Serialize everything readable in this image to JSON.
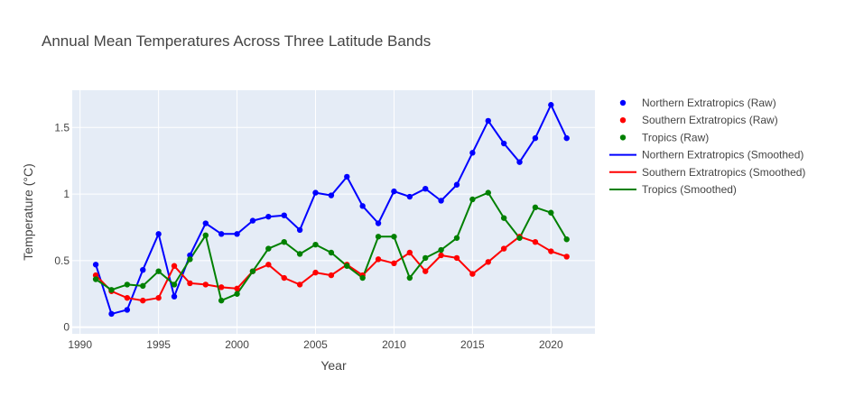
{
  "chart_data": {
    "type": "line",
    "title": "Annual Mean Temperatures Across Three Latitude Bands",
    "xlabel": "Year",
    "ylabel": "Temperature (°C)",
    "xlim": [
      1989.5,
      2022.8
    ],
    "ylim": [
      -0.05,
      1.78
    ],
    "xticks": [
      1990,
      1995,
      2000,
      2005,
      2010,
      2015,
      2020
    ],
    "xtick_labels": [
      "1990",
      "1995",
      "2000",
      "2005",
      "2010",
      "2015",
      "2020"
    ],
    "yticks": [
      0,
      0.5,
      1,
      1.5
    ],
    "ytick_labels": [
      "0",
      "0.5",
      "1",
      "1.5"
    ],
    "grid": true,
    "legend_position": "right",
    "x": [
      1991,
      1992,
      1993,
      1994,
      1995,
      1996,
      1997,
      1998,
      1999,
      2000,
      2001,
      2002,
      2003,
      2004,
      2005,
      2006,
      2007,
      2008,
      2009,
      2010,
      2011,
      2012,
      2013,
      2014,
      2015,
      2016,
      2017,
      2018,
      2019,
      2020,
      2021
    ],
    "series": [
      {
        "name": "Northern Extratropics",
        "color": "#0000ff",
        "values": [
          0.47,
          0.1,
          0.13,
          0.43,
          0.7,
          0.23,
          0.54,
          0.78,
          0.7,
          0.7,
          0.8,
          0.83,
          0.84,
          0.73,
          1.01,
          0.99,
          1.13,
          0.91,
          0.78,
          1.02,
          0.98,
          1.04,
          0.95,
          1.07,
          1.31,
          1.55,
          1.38,
          1.24,
          1.42,
          1.67,
          1.42
        ]
      },
      {
        "name": "Southern Extratropics",
        "color": "#ff0000",
        "values": [
          0.39,
          0.27,
          0.22,
          0.2,
          0.22,
          0.46,
          0.33,
          0.32,
          0.3,
          0.29,
          0.42,
          0.47,
          0.37,
          0.32,
          0.41,
          0.39,
          0.47,
          0.39,
          0.51,
          0.48,
          0.56,
          0.42,
          0.54,
          0.52,
          0.4,
          0.49,
          0.59,
          0.68,
          0.64,
          0.57,
          0.53
        ]
      },
      {
        "name": "Tropics",
        "color": "#008000",
        "values": [
          0.36,
          0.28,
          0.32,
          0.31,
          0.42,
          0.32,
          0.51,
          0.69,
          0.2,
          0.25,
          0.42,
          0.59,
          0.64,
          0.55,
          0.62,
          0.56,
          0.46,
          0.37,
          0.68,
          0.68,
          0.37,
          0.52,
          0.58,
          0.67,
          0.96,
          1.01,
          0.82,
          0.67,
          0.9,
          0.86,
          0.66
        ]
      }
    ],
    "legend": [
      {
        "label": "Northern Extratropics (Raw)",
        "kind": "marker",
        "color": "#0000ff"
      },
      {
        "label": "Southern Extratropics (Raw)",
        "kind": "marker",
        "color": "#ff0000"
      },
      {
        "label": "Tropics (Raw)",
        "kind": "marker",
        "color": "#008000"
      },
      {
        "label": "Northern Extratropics (Smoothed)",
        "kind": "line",
        "color": "#0000ff"
      },
      {
        "label": "Southern Extratropics (Smoothed)",
        "kind": "line",
        "color": "#ff0000"
      },
      {
        "label": "Tropics (Smoothed)",
        "kind": "line",
        "color": "#008000"
      }
    ]
  }
}
